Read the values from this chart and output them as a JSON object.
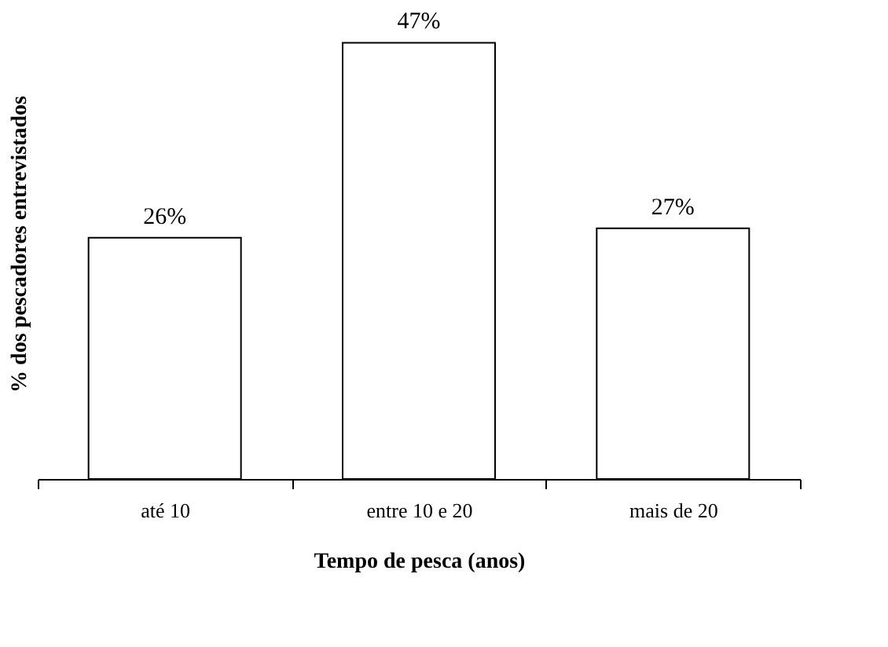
{
  "chart_data": {
    "type": "bar",
    "xlabel": "Tempo de pesca (anos)",
    "ylabel": "% dos pescadores entrevistados",
    "categories": [
      "até 10",
      "entre 10 e 20",
      "mais de 20"
    ],
    "values": [
      26,
      47,
      27
    ],
    "value_labels": [
      "26%",
      "47%",
      "27%"
    ],
    "color": "#ffffff",
    "grid": false
  }
}
